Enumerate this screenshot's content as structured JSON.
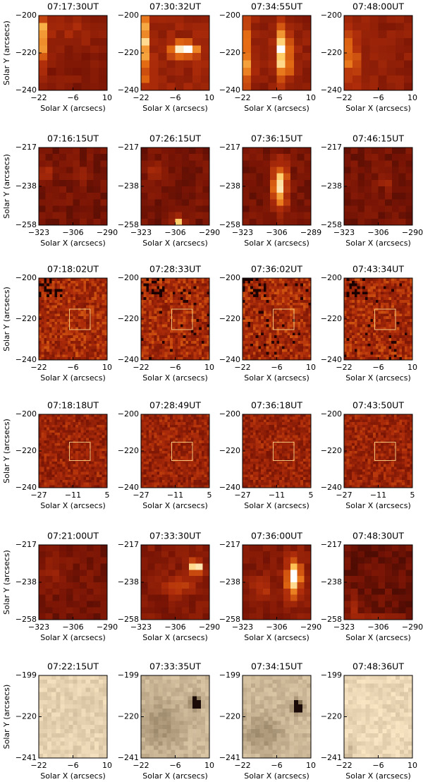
{
  "rows": [
    {
      "ylabel": "Solar Y (arcsecs)",
      "xlabel": "Solar X (arcsecs)",
      "panels": [
        {
          "time": "07:17:30UT",
          "xticks": [
            "−22",
            "−6",
            "10"
          ],
          "yticks": [
            "−200",
            "−220",
            "−240"
          ]
        },
        {
          "time": "07:30:32UT",
          "xticks": [
            "−22",
            "−6",
            "10"
          ],
          "yticks": [
            "−200",
            "−220",
            "−240"
          ]
        },
        {
          "time": "07:34:55UT",
          "xticks": [
            "−22",
            "−6",
            "10"
          ],
          "yticks": [
            "−200",
            "−220",
            "−240"
          ]
        },
        {
          "time": "07:48:00UT",
          "xticks": [
            "−22",
            "−6",
            "10"
          ],
          "yticks": [
            "−200",
            "−220",
            "−240"
          ]
        }
      ]
    },
    {
      "ylabel": "Solar Y (arcsecs)",
      "xlabel": "Solar X (arcsecs)",
      "panels": [
        {
          "time": "07:16:15UT",
          "xticks": [
            "−323",
            "−306",
            "−290"
          ],
          "yticks": [
            "−217",
            "−238",
            "−258"
          ]
        },
        {
          "time": "07:26:15UT",
          "xticks": [
            "−323",
            "−306",
            "−290"
          ],
          "yticks": [
            "−217",
            "−238",
            "−258"
          ]
        },
        {
          "time": "07:36:15UT",
          "xticks": [
            "−323",
            "−306",
            "−289"
          ],
          "yticks": [
            "−217",
            "−238",
            "−258"
          ]
        },
        {
          "time": "07:46:15UT",
          "xticks": [
            "−323",
            "−306",
            "−290"
          ],
          "yticks": [
            "−217",
            "−238",
            "−258"
          ]
        }
      ]
    },
    {
      "ylabel": "Solar Y (arcsecs)",
      "xlabel": "Solar X (arcsecs)",
      "panels": [
        {
          "time": "07:18:02UT",
          "xticks": [
            "−22",
            "−6",
            "10"
          ],
          "yticks": [
            "−200",
            "−220",
            "−240"
          ]
        },
        {
          "time": "07:28:33UT",
          "xticks": [
            "−22",
            "−6",
            "10"
          ],
          "yticks": [
            "−200",
            "−220",
            "−240"
          ]
        },
        {
          "time": "07:36:02UT",
          "xticks": [
            "−22",
            "−6",
            "10"
          ],
          "yticks": [
            "−200",
            "−220",
            "−240"
          ]
        },
        {
          "time": "07:43:34UT",
          "xticks": [
            "−22",
            "−6",
            "10"
          ],
          "yticks": [
            "−200",
            "−220",
            "−240"
          ]
        }
      ]
    },
    {
      "ylabel": "Solar Y (arcsecs)",
      "xlabel": "Solar X (arcsecs)",
      "panels": [
        {
          "time": "07:18:18UT",
          "xticks": [
            "−27",
            "−11",
            "5"
          ],
          "yticks": [
            "−200",
            "−220",
            "−240"
          ]
        },
        {
          "time": "07:28:49UT",
          "xticks": [
            "−27",
            "−11",
            "5"
          ],
          "yticks": [
            "−200",
            "−220",
            "−240"
          ]
        },
        {
          "time": "07:36:18UT",
          "xticks": [
            "−27",
            "−11",
            "5"
          ],
          "yticks": [
            "−200",
            "−220",
            "−240"
          ]
        },
        {
          "time": "07:43:50UT",
          "xticks": [
            "−27",
            "−11",
            "5"
          ],
          "yticks": [
            "−200",
            "−220",
            "−240"
          ]
        }
      ]
    },
    {
      "ylabel": "Solar Y (arcsecs)",
      "xlabel": "Solar X (arcsecs)",
      "panels": [
        {
          "time": "07:21:00UT",
          "xticks": [
            "−323",
            "−306",
            "−290"
          ],
          "yticks": [
            "−217",
            "−238",
            "−258"
          ]
        },
        {
          "time": "07:33:30UT",
          "xticks": [
            "−323",
            "−306",
            "−290"
          ],
          "yticks": [
            "−217",
            "−238",
            "−258"
          ]
        },
        {
          "time": "07:36:00UT",
          "xticks": [
            "−323",
            "−306",
            "−290"
          ],
          "yticks": [
            "−217",
            "−238",
            "−258"
          ]
        },
        {
          "time": "07:48:30UT",
          "xticks": [
            "−323",
            "−306",
            "−290"
          ],
          "yticks": [
            "−217",
            "−238",
            "−258"
          ]
        }
      ]
    },
    {
      "ylabel": "Solar Y (arcsecs)",
      "xlabel": "Solar X (arcsecs)",
      "panels": [
        {
          "time": "07:22:15UT",
          "xticks": [
            "−22",
            "−6",
            "10"
          ],
          "yticks": [
            "−199",
            "−220",
            "−241"
          ]
        },
        {
          "time": "07:33:35UT",
          "xticks": [
            "−22",
            "−6",
            "10"
          ],
          "yticks": [
            "−199",
            "−220",
            "−241"
          ]
        },
        {
          "time": "07:34:15UT",
          "xticks": [
            "−22",
            "−6",
            "10"
          ],
          "yticks": [
            "−199",
            "−220",
            "−241"
          ]
        },
        {
          "time": "07:48:36UT",
          "xticks": [
            "−22",
            "−6",
            "10"
          ],
          "yticks": [
            "−199",
            "−220",
            "−241"
          ]
        }
      ]
    }
  ]
}
